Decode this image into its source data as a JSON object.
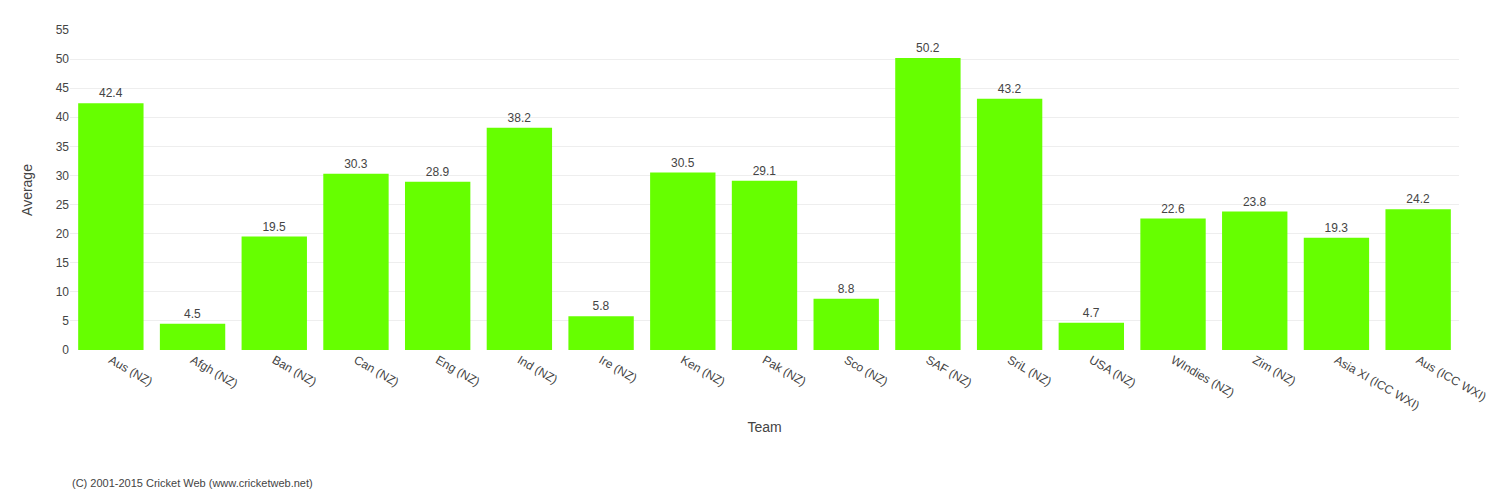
{
  "chart_data": {
    "type": "bar",
    "categories": [
      "Aus (NZ)",
      "Afgh (NZ)",
      "Ban (NZ)",
      "Can (NZ)",
      "Eng (NZ)",
      "Ind (NZ)",
      "Ire (NZ)",
      "Ken (NZ)",
      "Pak (NZ)",
      "Sco (NZ)",
      "SAF (NZ)",
      "SriL (NZ)",
      "USA (NZ)",
      "WIndies (NZ)",
      "Zim (NZ)",
      "Asia XI (ICC WXI)",
      "Aus (ICC WXI)"
    ],
    "values": [
      42.4,
      4.5,
      19.5,
      30.3,
      28.9,
      38.2,
      5.8,
      30.5,
      29.1,
      8.8,
      50.2,
      43.2,
      4.7,
      22.6,
      23.8,
      19.3,
      24.2
    ],
    "color": "#66ff00",
    "xlabel": "Team",
    "ylabel": "Average",
    "ylim": [
      0,
      55
    ],
    "yticks": [
      0,
      5,
      10,
      15,
      20,
      25,
      30,
      35,
      40,
      45,
      50,
      55
    ],
    "grid": true,
    "data_labels": true,
    "annotations": [
      "(C) 2001-2015 Cricket Web (www.cricketweb.net)"
    ]
  }
}
